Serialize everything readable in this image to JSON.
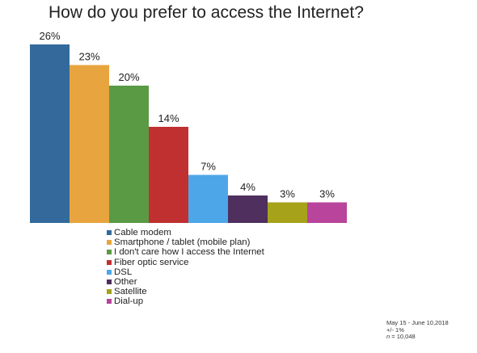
{
  "chart_data": {
    "type": "bar",
    "title": "How do you prefer to access the Internet?",
    "categories": [
      "Cable modem",
      "Smartphone / tablet (mobile plan)",
      "I don't care how I access the Internet",
      "Fiber optic service",
      "DSL",
      "Other",
      "Satellite",
      "Dial-up"
    ],
    "values": [
      26,
      23,
      20,
      14,
      7,
      4,
      3,
      3
    ],
    "value_labels": [
      "26%",
      "23%",
      "20%",
      "14%",
      "7%",
      "4%",
      "3%",
      "3%"
    ],
    "colors": [
      "#336a9b",
      "#e8a43e",
      "#5a9a45",
      "#c03030",
      "#4da6e8",
      "#4e2f5e",
      "#a6a21a",
      "#b8449b"
    ],
    "xlabel": "",
    "ylabel": "",
    "legend_position": "bottom",
    "grid": false
  },
  "footnote": {
    "dates": "May 15 - June 10,2018",
    "margin": "+/- 1%",
    "n_label": "n",
    "n_value": "= 10,048"
  }
}
